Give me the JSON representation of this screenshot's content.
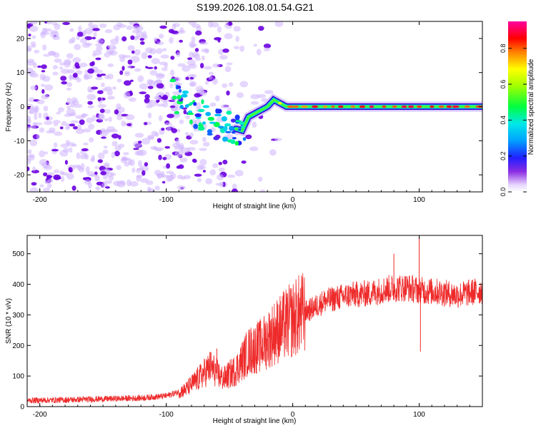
{
  "title": "S199.2026.108.01.54.G21",
  "colors": {
    "snr_line": "#ee2a2a",
    "spectrum_line": "#ff2d2d",
    "noise_light": "#cfb4ff",
    "noise_dark": "#6a00e0"
  },
  "chart_data": [
    {
      "type": "heatmap",
      "title": "",
      "xlabel": "Height of straight line (km)",
      "ylabel": "Frequency (Hz)",
      "xlim": [
        -210,
        150
      ],
      "ylim": [
        -25,
        25
      ],
      "xticks": [
        -200,
        -100,
        0,
        100
      ],
      "yticks": [
        -20,
        -10,
        0,
        10,
        20
      ],
      "colorbar": {
        "label": "Normalized spectral amplitude",
        "range": [
          0.0,
          0.95
        ],
        "ticks": [
          0.0,
          0.2,
          0.4,
          0.6,
          0.8
        ],
        "tick_labels": [
          "0.0",
          "0.2",
          "0.4",
          "0.6",
          "0.8"
        ]
      },
      "signal_ridge": {
        "x": [
          -90,
          -80,
          -70,
          -60,
          -50,
          -40,
          -35,
          -30,
          -25,
          -20,
          -15,
          -10,
          -5,
          0,
          50,
          100,
          150
        ],
        "freq_hz": [
          2,
          -1,
          -3,
          -5,
          -6,
          -7,
          -3,
          -2,
          -1,
          0,
          2,
          1,
          0,
          0,
          0,
          0,
          0
        ],
        "amplitude": [
          0.25,
          0.3,
          0.3,
          0.35,
          0.35,
          0.4,
          0.45,
          0.5,
          0.55,
          0.6,
          0.65,
          0.7,
          0.8,
          0.85,
          0.9,
          0.9,
          0.9
        ]
      },
      "noise_region_x": [
        -210,
        -40
      ]
    },
    {
      "type": "line",
      "title": "",
      "xlabel": "Height of straight line (km)",
      "ylabel": "SNR (10 * v/v)",
      "xlim": [
        -210,
        150
      ],
      "ylim": [
        0,
        560
      ],
      "xticks": [
        -200,
        -100,
        0,
        100
      ],
      "yticks": [
        0,
        100,
        200,
        300,
        400,
        500
      ],
      "series": [
        {
          "name": "SNR",
          "x": [
            -210,
            -180,
            -150,
            -120,
            -100,
            -85,
            -75,
            -65,
            -55,
            -45,
            -35,
            -25,
            -15,
            -5,
            5,
            15,
            25,
            35,
            45,
            60,
            75,
            90,
            100,
            115,
            130,
            150
          ],
          "values": [
            20,
            22,
            25,
            28,
            35,
            55,
            90,
            130,
            90,
            120,
            180,
            200,
            240,
            270,
            300,
            320,
            345,
            355,
            365,
            370,
            385,
            390,
            380,
            375,
            365,
            380
          ]
        }
      ],
      "spikes": [
        {
          "x": -60,
          "y": 190
        },
        {
          "x": -33,
          "y": 250
        },
        {
          "x": -5,
          "y": 370
        },
        {
          "x": 80,
          "y": 500
        },
        {
          "x": 100,
          "y": 560
        },
        {
          "x": 101,
          "y": 180
        }
      ]
    }
  ]
}
